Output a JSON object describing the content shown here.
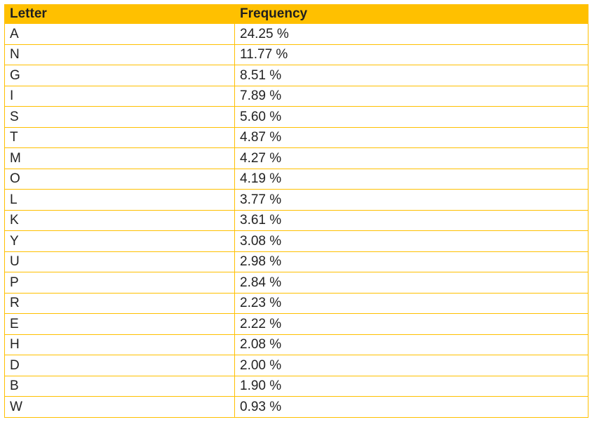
{
  "table": {
    "headers": [
      "Letter",
      "Frequency"
    ],
    "rows": [
      [
        "A",
        "24.25 %"
      ],
      [
        "N",
        "11.77 %"
      ],
      [
        "G",
        "8.51 %"
      ],
      [
        "I",
        "7.89 %"
      ],
      [
        "S",
        "5.60 %"
      ],
      [
        "T",
        "4.87 %"
      ],
      [
        "M",
        "4.27 %"
      ],
      [
        "O",
        "4.19 %"
      ],
      [
        "L",
        "3.77 %"
      ],
      [
        "K",
        "3.61 %"
      ],
      [
        "Y",
        "3.08 %"
      ],
      [
        "U",
        "2.98 %"
      ],
      [
        "P",
        "2.84 %"
      ],
      [
        "R",
        "2.23 %"
      ],
      [
        "E",
        "2.22 %"
      ],
      [
        "H",
        "2.08 %"
      ],
      [
        "D",
        "2.00 %"
      ],
      [
        "B",
        "1.90 %"
      ],
      [
        "W",
        "0.93 %"
      ]
    ]
  },
  "colors": {
    "header_background": "#FFC000",
    "border": "#FFC000"
  }
}
